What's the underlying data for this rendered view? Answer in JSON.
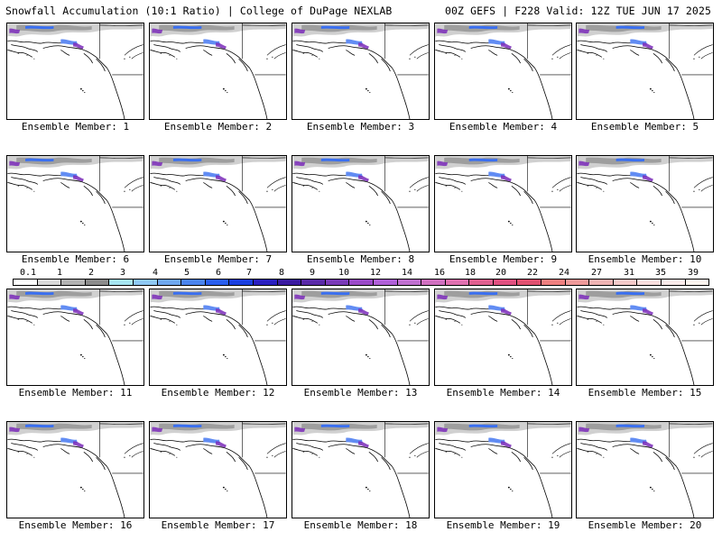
{
  "header": {
    "left_title": "Snowfall Accumulation (10:1 Ratio) | College of DuPage NEXLAB",
    "right_title": "00Z GEFS | F228 Valid: 12Z TUE JUN 17 2025"
  },
  "members": [
    {
      "label": "Ensemble Member: 1"
    },
    {
      "label": "Ensemble Member: 2"
    },
    {
      "label": "Ensemble Member: 3"
    },
    {
      "label": "Ensemble Member: 4"
    },
    {
      "label": "Ensemble Member: 5"
    },
    {
      "label": "Ensemble Member: 6"
    },
    {
      "label": "Ensemble Member: 7"
    },
    {
      "label": "Ensemble Member: 8"
    },
    {
      "label": "Ensemble Member: 9"
    },
    {
      "label": "Ensemble Member: 10"
    },
    {
      "label": "Ensemble Member: 11"
    },
    {
      "label": "Ensemble Member: 12"
    },
    {
      "label": "Ensemble Member: 13"
    },
    {
      "label": "Ensemble Member: 14"
    },
    {
      "label": "Ensemble Member: 15"
    },
    {
      "label": "Ensemble Member: 16"
    },
    {
      "label": "Ensemble Member: 17"
    },
    {
      "label": "Ensemble Member: 18"
    },
    {
      "label": "Ensemble Member: 19"
    },
    {
      "label": "Ensemble Member: 20"
    }
  ],
  "colorbar": {
    "labels": [
      "0.1",
      "1",
      "2",
      "3",
      "4",
      "5",
      "6",
      "7",
      "8",
      "9",
      "10",
      "12",
      "14",
      "16",
      "18",
      "20",
      "22",
      "24",
      "27",
      "31",
      "35",
      "39"
    ],
    "colors": [
      "#ffffff",
      "#d9d9d9",
      "#b3b3b3",
      "#8c8c8c",
      "#a6e6f2",
      "#8fc9f5",
      "#6fa8f0",
      "#4a84f0",
      "#2a5ff0",
      "#1a3fe0",
      "#2a1fc0",
      "#3a1aa0",
      "#5a2aa8",
      "#7a3ab8",
      "#9a4ac8",
      "#b060d8",
      "#c070d0",
      "#d070c0",
      "#e070b0",
      "#e06090",
      "#e05080",
      "#e05070",
      "#f08080",
      "#f09a9a",
      "#f0b4b4",
      "#f4caca",
      "#f8dede",
      "#fbecec",
      "#fdf5f0"
    ]
  },
  "style": {
    "coast_color": "#000000",
    "snow_gray": "#9e9e9e",
    "snow_light": "#d0d0d0",
    "snow_blue": "#3a6ff0",
    "snow_purple": "#7a2ab8"
  }
}
